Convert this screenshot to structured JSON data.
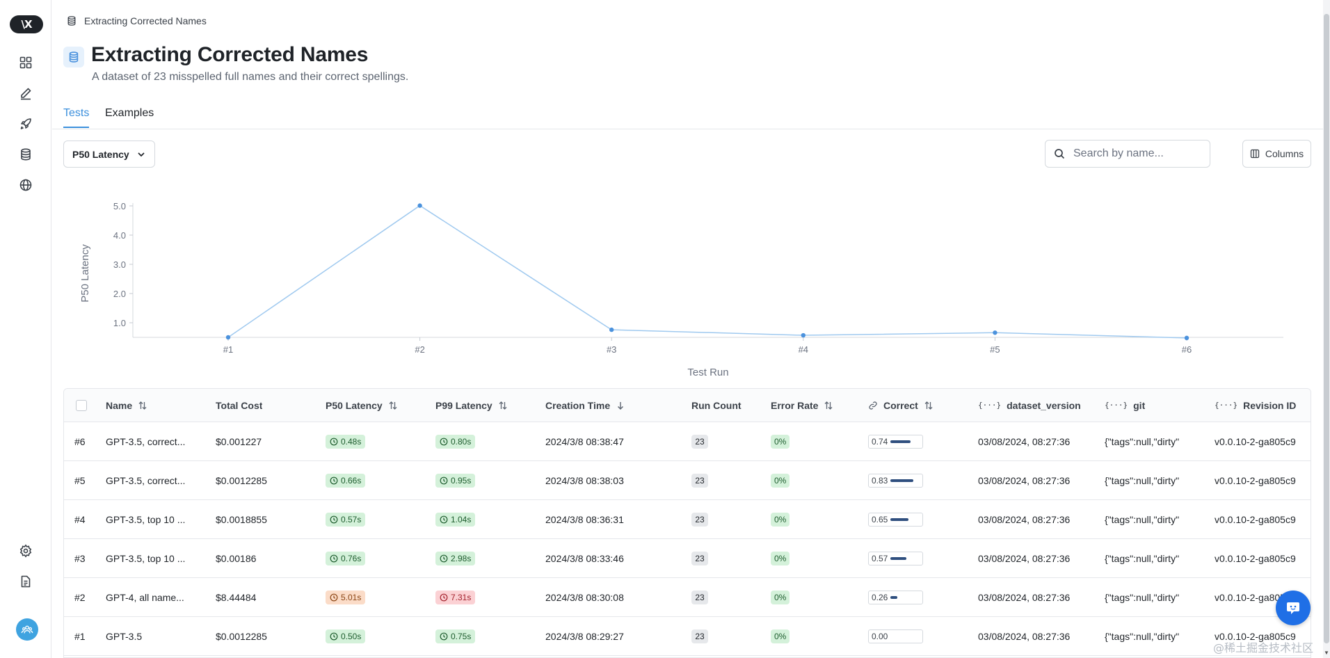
{
  "sidebar": {
    "logo_text": "\\X",
    "nav": [
      {
        "icon": "grid-icon"
      },
      {
        "icon": "pen-icon"
      },
      {
        "icon": "rocket-icon"
      },
      {
        "icon": "database-icon"
      },
      {
        "icon": "globe-icon"
      }
    ],
    "bottom": [
      {
        "icon": "settings-icon"
      },
      {
        "icon": "document-icon"
      },
      {
        "icon": "team-avatar-icon"
      }
    ]
  },
  "breadcrumb": {
    "label": "Extracting Corrected Names",
    "icon": "database-icon"
  },
  "header": {
    "title": "Extracting Corrected Names",
    "subtitle": "A dataset of 23 misspelled full names and their correct spellings."
  },
  "tabs": [
    {
      "label": "Tests",
      "active": true
    },
    {
      "label": "Examples",
      "active": false
    }
  ],
  "toolbar": {
    "metric_select": "P50 Latency",
    "search_placeholder": "Search by name...",
    "columns_label": "Columns"
  },
  "chart_data": {
    "type": "line",
    "x": [
      "#1",
      "#2",
      "#3",
      "#4",
      "#5",
      "#6"
    ],
    "series": [
      {
        "values": [
          0.5,
          5.01,
          0.76,
          0.57,
          0.66,
          0.48
        ]
      }
    ],
    "yticks": [
      "5.0",
      "4.0",
      "3.0",
      "2.0",
      "1.0"
    ],
    "ylim": [
      0.48,
      5.01
    ],
    "xlabel": "Test Run",
    "ylabel": "P50 Latency",
    "line_color": "#9fc9ef",
    "point_color": "#4b92dd",
    "grid": false
  },
  "table": {
    "headers": {
      "name": "Name",
      "total_cost": "Total Cost",
      "p50": "P50 Latency",
      "p99": "P99 Latency",
      "creation_time": "Creation Time",
      "run_count": "Run Count",
      "error_rate": "Error Rate",
      "correct": "Correct",
      "dataset_version": "dataset_version",
      "git": "git",
      "revision": "Revision ID",
      "brace_glyph": "{···}"
    },
    "rows": [
      {
        "id": "#6",
        "name": "GPT-3.5, correct...",
        "cost": "$0.001227",
        "p50": "0.48s",
        "p50_status": "green",
        "p99": "0.80s",
        "p99_status": "green",
        "created": "2024/3/8 08:38:47",
        "runs": "23",
        "error": "0%",
        "correct": "0.74",
        "correct_value": 0.74,
        "dataset_version": "03/08/2024, 08:27:36",
        "git": "{\"tags\":null,\"dirty\"",
        "revision": "v0.0.10-2-ga805c9"
      },
      {
        "id": "#5",
        "name": "GPT-3.5, correct...",
        "cost": "$0.0012285",
        "p50": "0.66s",
        "p50_status": "green",
        "p99": "0.95s",
        "p99_status": "green",
        "created": "2024/3/8 08:38:03",
        "runs": "23",
        "error": "0%",
        "correct": "0.83",
        "correct_value": 0.83,
        "dataset_version": "03/08/2024, 08:27:36",
        "git": "{\"tags\":null,\"dirty\"",
        "revision": "v0.0.10-2-ga805c9"
      },
      {
        "id": "#4",
        "name": "GPT-3.5, top 10 ...",
        "cost": "$0.0018855",
        "p50": "0.57s",
        "p50_status": "green",
        "p99": "1.04s",
        "p99_status": "green",
        "created": "2024/3/8 08:36:31",
        "runs": "23",
        "error": "0%",
        "correct": "0.65",
        "correct_value": 0.65,
        "dataset_version": "03/08/2024, 08:27:36",
        "git": "{\"tags\":null,\"dirty\"",
        "revision": "v0.0.10-2-ga805c9"
      },
      {
        "id": "#3",
        "name": "GPT-3.5, top 10 ...",
        "cost": "$0.00186",
        "p50": "0.76s",
        "p50_status": "green",
        "p99": "2.98s",
        "p99_status": "green",
        "created": "2024/3/8 08:33:46",
        "runs": "23",
        "error": "0%",
        "correct": "0.57",
        "correct_value": 0.57,
        "dataset_version": "03/08/2024, 08:27:36",
        "git": "{\"tags\":null,\"dirty\"",
        "revision": "v0.0.10-2-ga805c9"
      },
      {
        "id": "#2",
        "name": "GPT-4, all name...",
        "cost": "$8.44484",
        "p50": "5.01s",
        "p50_status": "orange",
        "p99": "7.31s",
        "p99_status": "red",
        "created": "2024/3/8 08:30:08",
        "runs": "23",
        "error": "0%",
        "correct": "0.26",
        "correct_value": 0.26,
        "dataset_version": "03/08/2024, 08:27:36",
        "git": "{\"tags\":null,\"dirty\"",
        "revision": "v0.0.10-2-ga805c9"
      },
      {
        "id": "#1",
        "name": "GPT-3.5",
        "cost": "$0.0012285",
        "p50": "0.50s",
        "p50_status": "green",
        "p99": "0.75s",
        "p99_status": "green",
        "created": "2024/3/8 08:29:27",
        "runs": "23",
        "error": "0%",
        "correct": "0.00",
        "correct_value": 0.0,
        "dataset_version": "03/08/2024, 08:27:36",
        "git": "{\"tags\":null,\"dirty\"",
        "revision": "v0.0.10-2-ga805c9"
      }
    ]
  },
  "chat_button": {
    "icon": "chat-bubble-icon"
  },
  "watermark": "@稀土掘金技术社区"
}
